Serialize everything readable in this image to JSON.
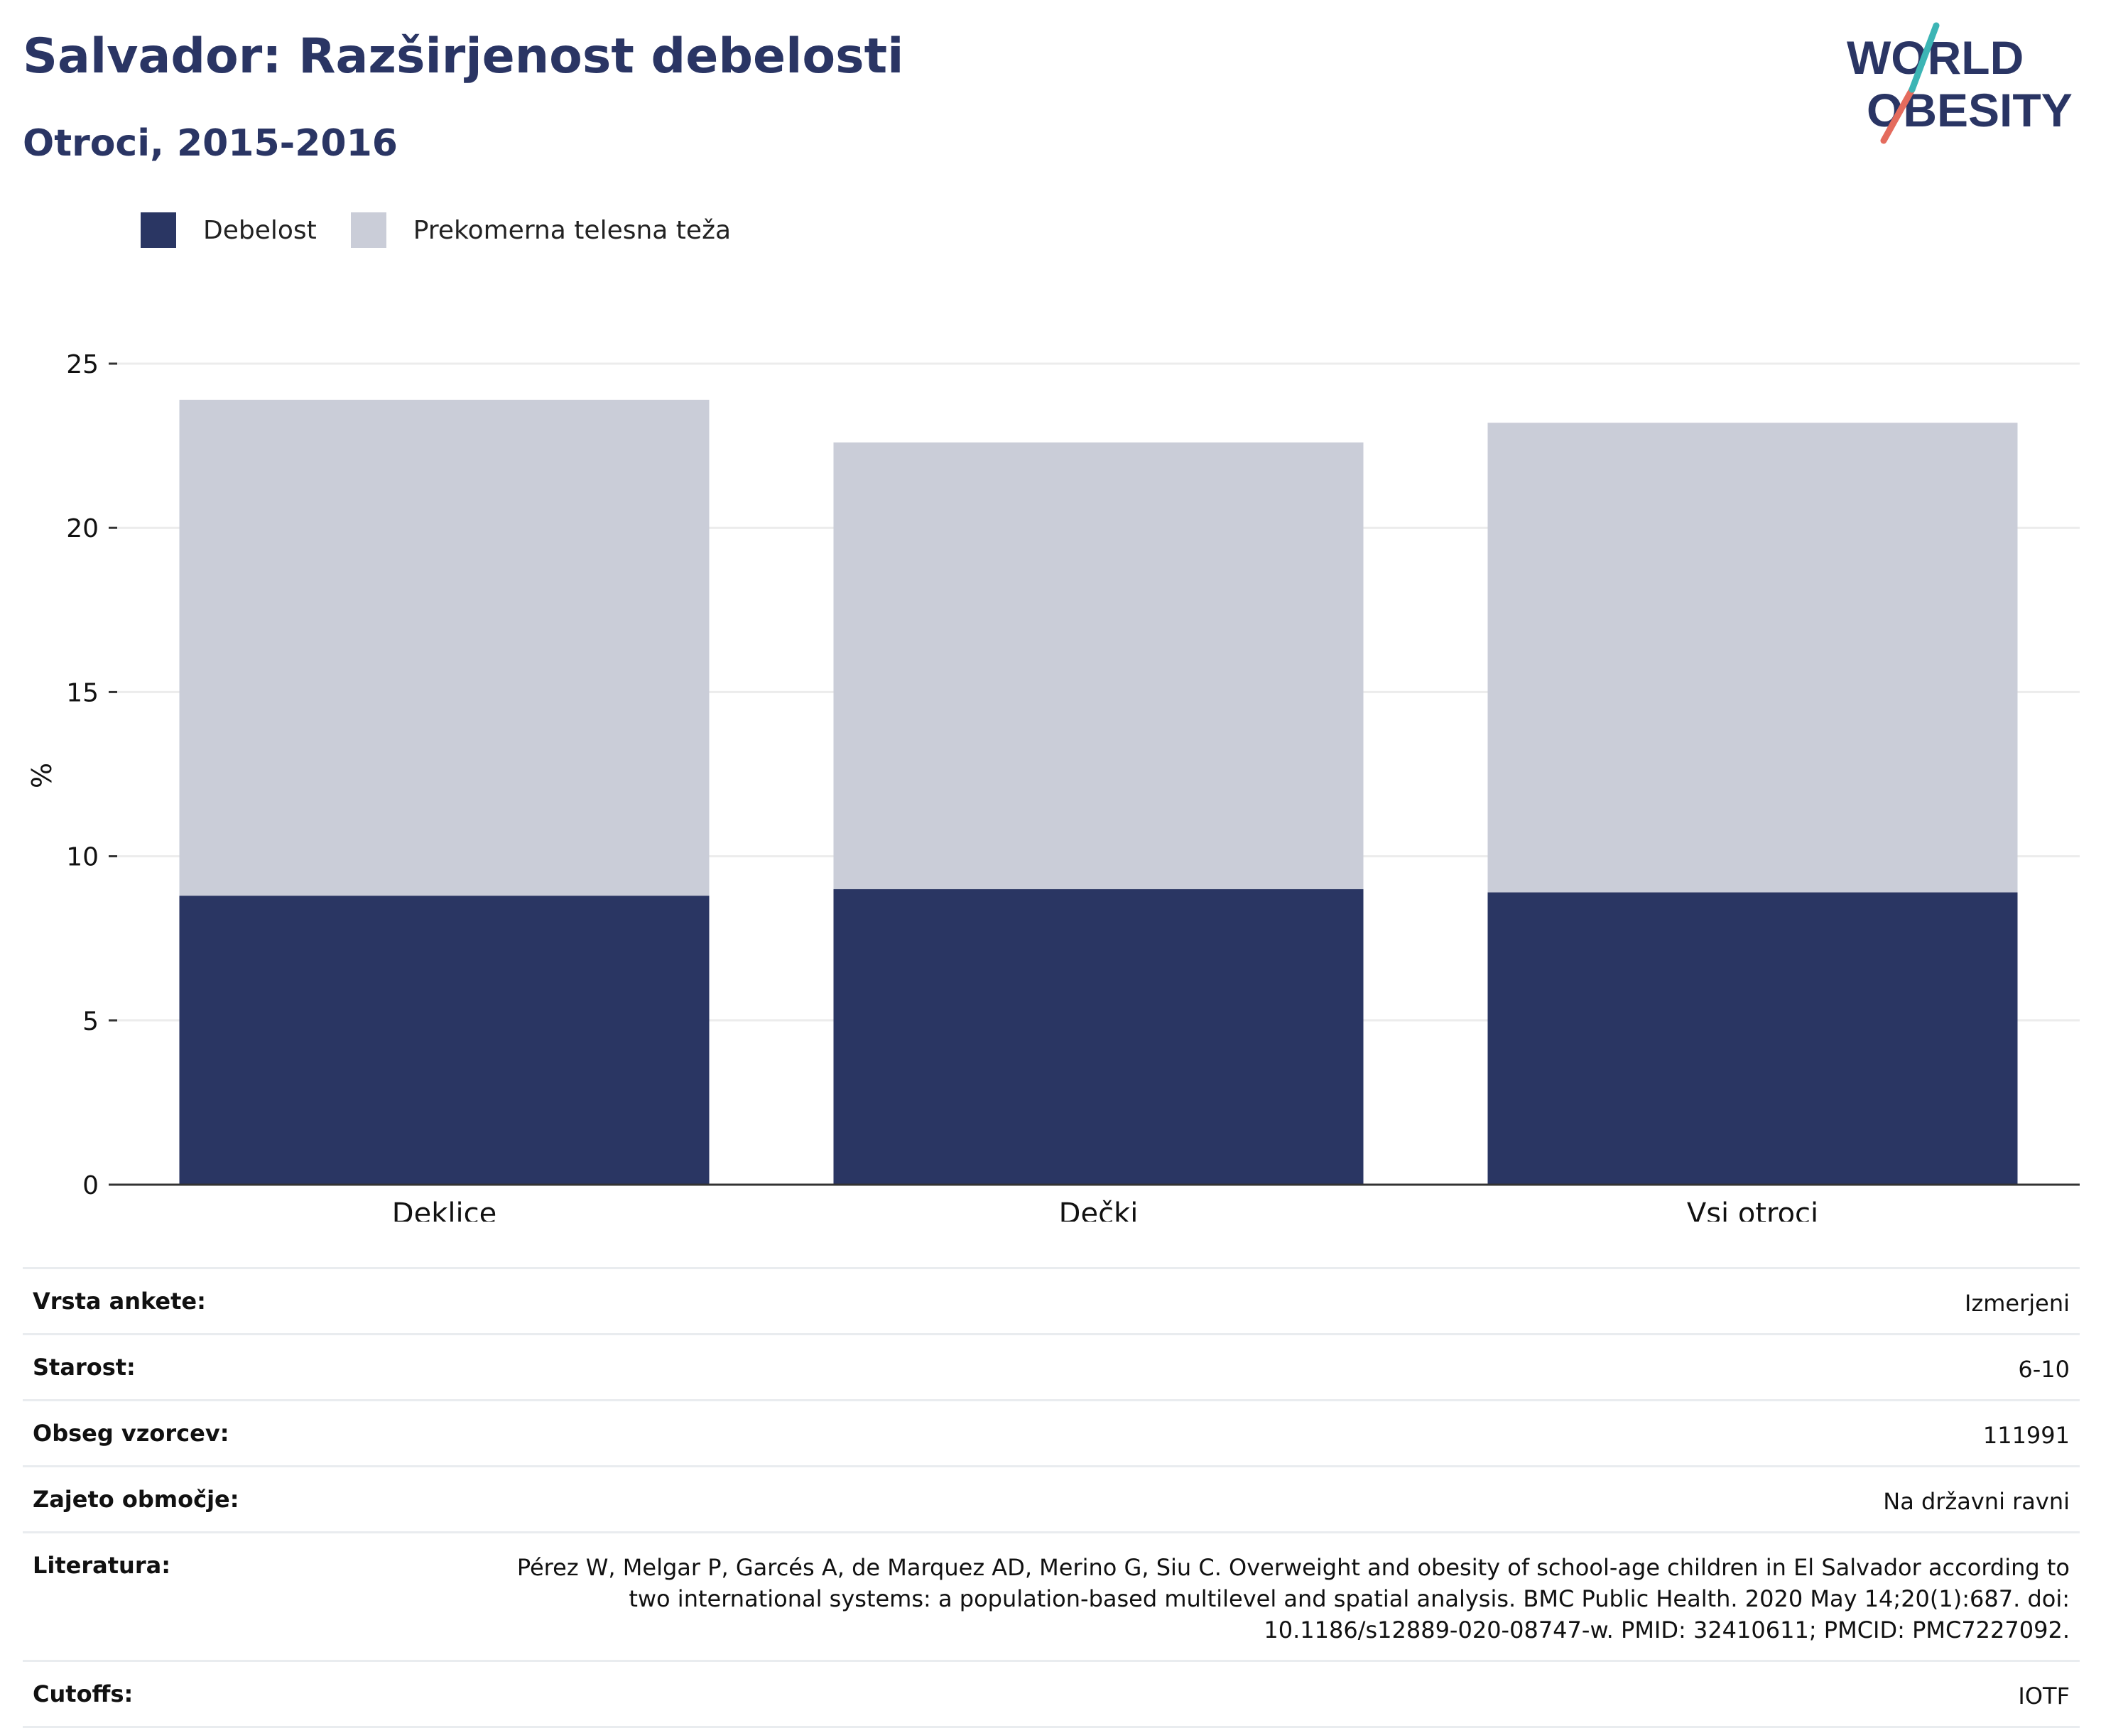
{
  "header": {
    "title": "Salvador: Razširjenost debelosti",
    "subtitle": "Otroci, 2015-2016"
  },
  "logo": {
    "line1": "WORLD",
    "line2": "OBESITY"
  },
  "colors": {
    "obesity": "#2a3663",
    "overweight": "#cacdd8",
    "title": "#2a3564",
    "logo_teal": "#3cb5b5",
    "logo_coral": "#e46b5d"
  },
  "chart_data": {
    "type": "bar",
    "stacked": true,
    "categories": [
      "Deklice",
      "Dečki",
      "Vsi otroci"
    ],
    "series": [
      {
        "name": "Debelost",
        "values": [
          8.8,
          9.0,
          8.9
        ]
      },
      {
        "name": "Prekomerna telesna teža",
        "values": [
          15.1,
          13.6,
          14.3
        ]
      }
    ],
    "ylabel": "%",
    "ylim": [
      0,
      25
    ],
    "yticks": [
      "0",
      "5",
      "10",
      "15",
      "20",
      "25"
    ],
    "grid": true,
    "legend_position": "top-left"
  },
  "meta": [
    {
      "label": "Vrsta ankete:",
      "value": "Izmerjeni"
    },
    {
      "label": "Starost:",
      "value": "6-10"
    },
    {
      "label": "Obseg vzorcev:",
      "value": "111991"
    },
    {
      "label": "Zajeto območje:",
      "value": "Na državni ravni"
    },
    {
      "label": "Literatura:",
      "value": "Pérez W, Melgar P, Garcés A, de Marquez AD, Merino G, Siu C. Overweight and obesity of school-age children in El Salvador according to two international systems: a population-based multilevel and spatial analysis. BMC Public Health. 2020 May 14;20(1):687. doi: 10.1186/s12889-020-08747-w. PMID: 32410611; PMCID: PMC7227092."
    },
    {
      "label": "Cutoffs:",
      "value": "IOTF"
    }
  ]
}
